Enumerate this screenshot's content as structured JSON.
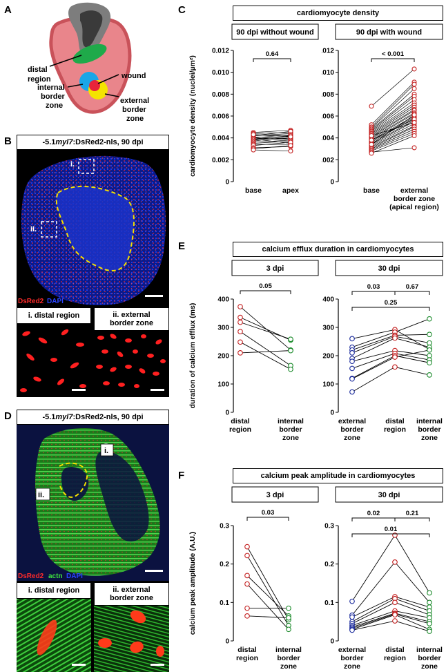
{
  "panelA": {
    "label": "A",
    "labels": {
      "distal": [
        "distal",
        "region"
      ],
      "wound": "wound",
      "internal": [
        "internal",
        "border",
        "zone"
      ],
      "external": [
        "external",
        "border",
        "zone"
      ]
    }
  },
  "panelB": {
    "label": "B",
    "title_pre": "-5.1",
    "title_ital": "myl7",
    "title_post": ":DsRed2-nls, 90 dpi",
    "roi_i": "i.",
    "roi_ii": "ii.",
    "legend_red": "DsRed2",
    "legend_blue": "DAPI",
    "inset1": "i. distal region",
    "inset2": "ii. external border zone"
  },
  "panelD": {
    "label": "D",
    "title_pre": "-5.1",
    "title_ital": "myl7",
    "title_post": ":DsRed2-nls, 90 dpi",
    "roi_i": "i.",
    "roi_ii": "ii.",
    "legend_red": "DsRed2",
    "legend_green": "actn",
    "legend_blue": "DAPI",
    "inset1": "i. distal region",
    "inset2": "ii. external border zone"
  },
  "panelC": {
    "label": "C",
    "title": "cardiomyocyte density",
    "ylabel": "cardiomyocyte density (nuclei/µm²)",
    "colors": {
      "series": "#d42020"
    }
  },
  "panelE": {
    "label": "E",
    "title": "calcium efflux duration in cardiomyocytes",
    "ylabel": "duration of calcium efflux (ms)"
  },
  "panelF": {
    "label": "F",
    "title": "calcium peak amplitude in cardiomyocytes",
    "ylabel": "calcium peak amplitude (A.U.)"
  },
  "chart_data": [
    {
      "id": "C1",
      "type": "scatter",
      "subtitle": "90 dpi without wound",
      "categories": [
        "base",
        "apex"
      ],
      "ylim": [
        0,
        0.012
      ],
      "yticks": [
        "0",
        "0.002",
        "0.004",
        "0.006",
        "0.008",
        "0.010",
        "0.012"
      ],
      "pvalue": "0.64",
      "pairs": [
        [
          0.0045,
          0.0047
        ],
        [
          0.0044,
          0.0045
        ],
        [
          0.0043,
          0.0042
        ],
        [
          0.0042,
          0.0044
        ],
        [
          0.0042,
          0.0046
        ],
        [
          0.0041,
          0.0039
        ],
        [
          0.004,
          0.0043
        ],
        [
          0.004,
          0.0038
        ],
        [
          0.0039,
          0.0041
        ],
        [
          0.0039,
          0.0035
        ],
        [
          0.0038,
          0.004
        ],
        [
          0.0037,
          0.0042
        ],
        [
          0.0036,
          0.0038
        ],
        [
          0.0035,
          0.0037
        ],
        [
          0.0034,
          0.0034
        ],
        [
          0.0033,
          0.0036
        ],
        [
          0.0031,
          0.0032
        ],
        [
          0.003,
          0.0033
        ],
        [
          0.0029,
          0.0028
        ],
        [
          0.0043,
          0.0041
        ]
      ]
    },
    {
      "id": "C2",
      "type": "scatter",
      "subtitle": "90 dpi with wound",
      "categories": [
        "base",
        "external border zone (apical region)"
      ],
      "ylim": [
        0,
        0.012
      ],
      "yticks": [
        "0",
        "0.002",
        "0.004",
        "0.006",
        "0.008",
        "0.010",
        "0.012"
      ],
      "pvalue": "< 0.001",
      "pairs": [
        [
          0.0069,
          0.0103
        ],
        [
          0.0052,
          0.0091
        ],
        [
          0.005,
          0.0089
        ],
        [
          0.0049,
          0.0085
        ],
        [
          0.0048,
          0.008
        ],
        [
          0.0047,
          0.0078
        ],
        [
          0.0046,
          0.0075
        ],
        [
          0.0045,
          0.0072
        ],
        [
          0.0044,
          0.007
        ],
        [
          0.0043,
          0.0068
        ],
        [
          0.0042,
          0.0066
        ],
        [
          0.0041,
          0.0065
        ],
        [
          0.004,
          0.0063
        ],
        [
          0.0039,
          0.0062
        ],
        [
          0.0038,
          0.006
        ],
        [
          0.0037,
          0.0059
        ],
        [
          0.0036,
          0.0058
        ],
        [
          0.0035,
          0.0056
        ],
        [
          0.0034,
          0.0055
        ],
        [
          0.0033,
          0.0053
        ],
        [
          0.0032,
          0.0051
        ],
        [
          0.0031,
          0.005
        ],
        [
          0.003,
          0.0048
        ],
        [
          0.0029,
          0.0046
        ],
        [
          0.0028,
          0.0044
        ],
        [
          0.0027,
          0.0031
        ],
        [
          0.0026,
          0.0042
        ],
        [
          0.0034,
          0.0061
        ],
        [
          0.0038,
          0.0057
        ],
        [
          0.0042,
          0.0054
        ]
      ]
    },
    {
      "id": "E1",
      "type": "scatter",
      "subtitle": "3 dpi",
      "categories": [
        "distal region",
        "internal border zone"
      ],
      "ylim": [
        0,
        400
      ],
      "yticks": [
        "0",
        "100",
        "200",
        "300",
        "400"
      ],
      "pvalue": "0.05",
      "pairs": [
        [
          373,
          220
        ],
        [
          335,
          255
        ],
        [
          318,
          258
        ],
        [
          285,
          165
        ],
        [
          248,
          152
        ],
        [
          210,
          218
        ]
      ]
    },
    {
      "id": "E2",
      "type": "scatter",
      "subtitle": "30 dpi",
      "categories": [
        "external border zone",
        "distal region",
        "internal border zone"
      ],
      "ylim": [
        0,
        400
      ],
      "yticks": [
        "0",
        "100",
        "200",
        "300",
        "400"
      ],
      "pvalues": [
        "0.03",
        "0.67",
        "0.25"
      ],
      "triples": [
        [
          260,
          292,
          222
        ],
        [
          230,
          283,
          330
        ],
        [
          220,
          272,
          275
        ],
        [
          210,
          268,
          245
        ],
        [
          190,
          262,
          230
        ],
        [
          180,
          218,
          200
        ],
        [
          155,
          208,
          185
        ],
        [
          120,
          200,
          175
        ],
        [
          118,
          195,
          220
        ],
        [
          72,
          160,
          132
        ]
      ]
    },
    {
      "id": "F1",
      "type": "scatter",
      "subtitle": "3 dpi",
      "categories": [
        "distal region",
        "internal border zone"
      ],
      "ylim": [
        0,
        0.3
      ],
      "yticks": [
        "0",
        "0.1",
        "0.2",
        "0.3"
      ],
      "pvalue": "0.03",
      "pairs": [
        [
          0.245,
          0.055
        ],
        [
          0.222,
          0.04
        ],
        [
          0.17,
          0.065
        ],
        [
          0.148,
          0.03
        ],
        [
          0.085,
          0.085
        ],
        [
          0.065,
          0.06
        ]
      ]
    },
    {
      "id": "F2",
      "type": "scatter",
      "subtitle": "30 dpi",
      "categories": [
        "external border zone",
        "distal region",
        "internal border zone"
      ],
      "ylim": [
        0,
        0.3
      ],
      "yticks": [
        "0",
        "0.1",
        "0.2",
        "0.3"
      ],
      "pvalues": [
        "0.02",
        "0.21",
        "0.01"
      ],
      "triples": [
        [
          0.103,
          0.275,
          0.125
        ],
        [
          0.067,
          0.205,
          0.1
        ],
        [
          0.062,
          0.115,
          0.088
        ],
        [
          0.05,
          0.11,
          0.078
        ],
        [
          0.045,
          0.1,
          0.068
        ],
        [
          0.04,
          0.078,
          0.06
        ],
        [
          0.036,
          0.072,
          0.05
        ],
        [
          0.033,
          0.07,
          0.045
        ],
        [
          0.03,
          0.068,
          0.03
        ],
        [
          0.028,
          0.052,
          0.025
        ]
      ]
    }
  ]
}
